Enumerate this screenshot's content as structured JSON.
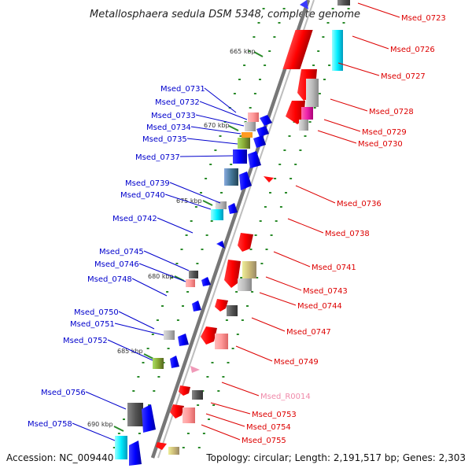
{
  "title": "Metallosphaera sedula DSM 5348, complete genome",
  "footer": {
    "accession": "Accession: NC_009440",
    "topology": "Topology: circular; Length: 2,191,517 bp; Genes: 2,303"
  },
  "colors": {
    "forward_label": "#0000cc",
    "reverse_label": "#dd0000",
    "rna_label": "#f08aaa",
    "backbone": "#888888",
    "tick": "#2a8a2a"
  },
  "ruler": [
    "665 kbp",
    "670 kbp",
    "675 kbp",
    "680 kbp",
    "685 kbp",
    "690 kbp"
  ],
  "genes_forward": [
    {
      "label": "Msed_0731"
    },
    {
      "label": "Msed_0732"
    },
    {
      "label": "Msed_0733"
    },
    {
      "label": "Msed_0734"
    },
    {
      "label": "Msed_0735"
    },
    {
      "label": "Msed_0737"
    },
    {
      "label": "Msed_0739"
    },
    {
      "label": "Msed_0740"
    },
    {
      "label": "Msed_0742"
    },
    {
      "label": "Msed_0745"
    },
    {
      "label": "Msed_0746"
    },
    {
      "label": "Msed_0748"
    },
    {
      "label": "Msed_0750"
    },
    {
      "label": "Msed_0751"
    },
    {
      "label": "Msed_0752"
    },
    {
      "label": "Msed_0756"
    },
    {
      "label": "Msed_0758"
    }
  ],
  "genes_reverse": [
    {
      "label": "Msed_0723"
    },
    {
      "label": "Msed_0726"
    },
    {
      "label": "Msed_0727"
    },
    {
      "label": "Msed_0728"
    },
    {
      "label": "Msed_0729"
    },
    {
      "label": "Msed_0730"
    },
    {
      "label": "Msed_0736"
    },
    {
      "label": "Msed_0738"
    },
    {
      "label": "Msed_0741"
    },
    {
      "label": "Msed_0743"
    },
    {
      "label": "Msed_0744"
    },
    {
      "label": "Msed_0747"
    },
    {
      "label": "Msed_0749"
    },
    {
      "label": "Msed_R0014"
    },
    {
      "label": "Msed_0753"
    },
    {
      "label": "Msed_0754"
    },
    {
      "label": "Msed_0755"
    }
  ]
}
